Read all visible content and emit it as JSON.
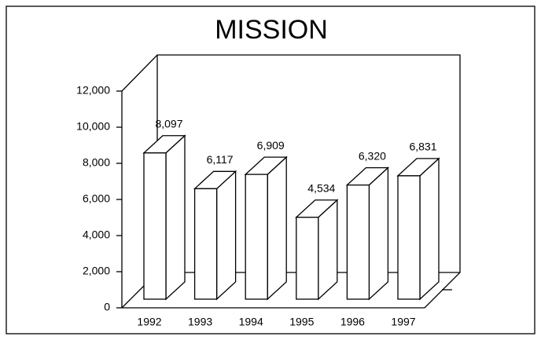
{
  "chart_data": {
    "type": "bar3d",
    "title": "MISSION",
    "categories": [
      "1992",
      "1993",
      "1994",
      "1995",
      "1996",
      "1997"
    ],
    "values": [
      8097,
      6117,
      6909,
      4534,
      6320,
      6831
    ],
    "value_labels": [
      "8,097",
      "6,117",
      "6,909",
      "4,534",
      "6,320",
      "6,831"
    ],
    "color": "#ffffff",
    "ylim": [
      0,
      12000
    ],
    "yticks": [
      0,
      {
        "value": 2000,
        "label": "2,000"
      },
      {
        "value": 4000,
        "label": "4,000"
      },
      {
        "value": 6000,
        "label": "6,000"
      },
      {
        "value": 8000,
        "label": "8,000"
      },
      {
        "value": 10000,
        "label": "10,000"
      },
      {
        "value": 12000,
        "label": "12,000"
      }
    ]
  }
}
